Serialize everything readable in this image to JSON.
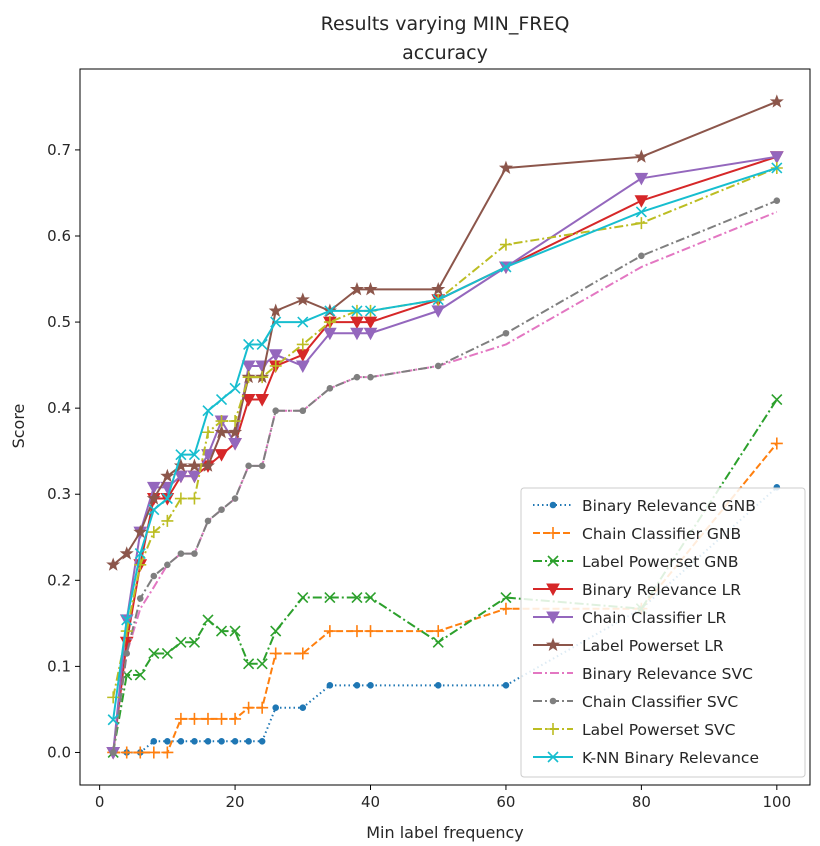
{
  "chart_data": {
    "type": "line",
    "title": "Results varying MIN_FREQ",
    "subtitle": "accuracy",
    "xlabel": "Min label frequency",
    "ylabel": "Score",
    "xlim": [
      -2.9,
      104.9
    ],
    "ylim": [
      -0.0378,
      0.794
    ],
    "xticks": [
      "0",
      "20",
      "40",
      "60",
      "80",
      "100"
    ],
    "yticks": [
      "0.0",
      "0.1",
      "0.2",
      "0.3",
      "0.4",
      "0.5",
      "0.6",
      "0.7"
    ],
    "grid": false,
    "legend_position": "bottom-right",
    "x": [
      2,
      4,
      6,
      8,
      10,
      12,
      14,
      16,
      18,
      20,
      22,
      24,
      26,
      30,
      34,
      38,
      40,
      50,
      60,
      80,
      100
    ],
    "series": [
      {
        "name": "Binary Relevance GNB",
        "color": "#1f77b4",
        "marker": "point",
        "dash": "dotted",
        "values": [
          0.0,
          0.0,
          0.0,
          0.013,
          0.013,
          0.013,
          0.013,
          0.013,
          0.013,
          0.013,
          0.013,
          0.013,
          0.052,
          0.052,
          0.078,
          0.078,
          0.078,
          0.078,
          0.078,
          0.167,
          0.308
        ]
      },
      {
        "name": "Chain Classifier GNB",
        "color": "#ff7f0e",
        "marker": "plus",
        "dash": "dashed",
        "values": [
          0.0,
          0.0,
          0.0,
          0.0,
          0.0,
          0.039,
          0.039,
          0.039,
          0.039,
          0.039,
          0.052,
          0.052,
          0.115,
          0.115,
          0.141,
          0.141,
          0.141,
          0.141,
          0.167,
          0.167,
          0.359
        ]
      },
      {
        "name": "Label Powerset GNB",
        "color": "#2ca02c",
        "marker": "x",
        "dash": "dashdot",
        "values": [
          0.0,
          0.09,
          0.09,
          0.115,
          0.115,
          0.128,
          0.128,
          0.154,
          0.141,
          0.141,
          0.103,
          0.103,
          0.141,
          0.18,
          0.18,
          0.18,
          0.18,
          0.128,
          0.18,
          0.167,
          0.41
        ]
      },
      {
        "name": "Binary Relevance LR",
        "color": "#d62728",
        "marker": "triangle-down",
        "dash": "solid",
        "values": [
          0.0,
          0.128,
          0.218,
          0.295,
          0.295,
          0.321,
          0.321,
          0.333,
          0.346,
          0.359,
          0.41,
          0.41,
          0.449,
          0.462,
          0.5,
          0.5,
          0.5,
          0.526,
          0.564,
          0.641,
          0.692
        ]
      },
      {
        "name": "Chain Classifier LR",
        "color": "#9467bd",
        "marker": "triangle-down",
        "dash": "solid",
        "values": [
          0.0,
          0.154,
          0.256,
          0.308,
          0.308,
          0.321,
          0.321,
          0.346,
          0.385,
          0.359,
          0.449,
          0.449,
          0.462,
          0.449,
          0.487,
          0.487,
          0.487,
          0.513,
          0.564,
          0.667,
          0.692
        ]
      },
      {
        "name": "Label Powerset LR",
        "color": "#8c564b",
        "marker": "star",
        "dash": "solid",
        "values": [
          0.218,
          0.231,
          0.256,
          0.295,
          0.321,
          0.333,
          0.333,
          0.333,
          0.372,
          0.372,
          0.436,
          0.436,
          0.513,
          0.526,
          0.513,
          0.538,
          0.538,
          0.538,
          0.679,
          0.692,
          0.756
        ]
      },
      {
        "name": "Binary Relevance SVC",
        "color": "#e377c2",
        "marker": "none",
        "dash": "dashdot",
        "values": [
          0.0,
          0.115,
          0.167,
          0.192,
          0.218,
          0.231,
          0.231,
          0.269,
          0.282,
          0.295,
          0.333,
          0.333,
          0.397,
          0.397,
          0.423,
          0.436,
          0.436,
          0.449,
          0.474,
          0.564,
          0.628
        ]
      },
      {
        "name": "Chain Classifier SVC",
        "color": "#7f7f7f",
        "marker": "point",
        "dash": "dashdot",
        "values": [
          0.0,
          0.115,
          0.179,
          0.205,
          0.218,
          0.231,
          0.231,
          0.269,
          0.282,
          0.295,
          0.333,
          0.333,
          0.397,
          0.397,
          0.423,
          0.436,
          0.436,
          0.449,
          0.487,
          0.577,
          0.641
        ]
      },
      {
        "name": "Label Powerset SVC",
        "color": "#bcbd22",
        "marker": "plus",
        "dash": "dashdot",
        "values": [
          0.064,
          0.141,
          0.218,
          0.256,
          0.269,
          0.295,
          0.295,
          0.372,
          0.385,
          0.385,
          0.436,
          0.436,
          0.449,
          0.474,
          0.5,
          0.513,
          0.513,
          0.526,
          0.59,
          0.615,
          0.679
        ]
      },
      {
        "name": "K-NN Binary Relevance",
        "color": "#17becf",
        "marker": "x",
        "dash": "solid",
        "values": [
          0.038,
          0.154,
          0.231,
          0.282,
          0.295,
          0.346,
          0.346,
          0.397,
          0.41,
          0.423,
          0.474,
          0.474,
          0.5,
          0.5,
          0.513,
          0.513,
          0.513,
          0.526,
          0.564,
          0.628,
          0.679
        ]
      }
    ]
  }
}
